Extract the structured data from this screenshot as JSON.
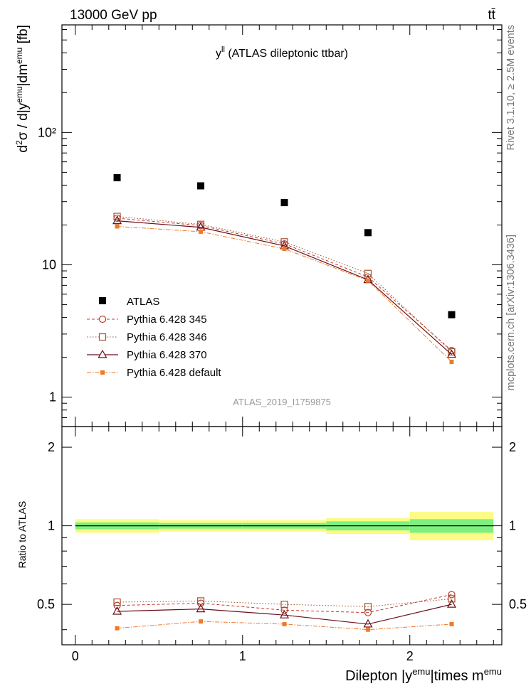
{
  "header": {
    "energy_label": "13000 GeV pp",
    "process_label": "tt̄"
  },
  "side_labels": {
    "rivet": "Rivet 3.1.10, ≥ 2.5M events",
    "mcplots": "mcplots.cern.ch [arXiv:1306.3436]"
  },
  "chart_data": [
    {
      "type": "scatter",
      "panel": "main",
      "title_base": "y",
      "title_sup": "ll",
      "title_rest": " (ATLAS dileptonic ttbar)",
      "ylabel": "d²σ / d|yᵉᵐᵘ|dmᵉᵐᵘ [fb]",
      "yscale": "log",
      "xlim": [
        -0.08,
        2.55
      ],
      "ylim": [
        0.6,
        650
      ],
      "yticks": [
        1,
        10,
        100
      ],
      "ytick_labels": [
        "1",
        "10",
        "10²"
      ],
      "analysis_id": "ATLAS_2019_I1759875",
      "legend_position": "left-middle",
      "x": [
        0.25,
        0.75,
        1.25,
        1.75,
        2.25
      ],
      "series": [
        {
          "name": "ATLAS",
          "marker": "filled-square",
          "color": "#000000",
          "values": [
            45.5,
            39.5,
            29.5,
            17.5,
            4.2
          ]
        },
        {
          "name": "Pythia 6.428 345",
          "marker": "open-circle",
          "line": "dashed",
          "color": "#c0392b",
          "values": [
            22.5,
            19.8,
            14.4,
            8.1,
            2.25
          ]
        },
        {
          "name": "Pythia 6.428 346",
          "marker": "open-square",
          "line": "dotted",
          "color": "#a0522d",
          "values": [
            23.2,
            20.2,
            14.9,
            8.6,
            2.2
          ]
        },
        {
          "name": "Pythia 6.428 370",
          "marker": "open-triangle",
          "line": "solid",
          "color": "#6b0f1a",
          "values": [
            21.5,
            19.2,
            13.9,
            7.7,
            2.1
          ]
        },
        {
          "name": "Pythia 6.428 default",
          "marker": "filled-square-small",
          "line": "dashdot",
          "color": "#f07a2a",
          "values": [
            19.5,
            17.8,
            13.2,
            7.6,
            1.85
          ]
        }
      ]
    },
    {
      "type": "scatter",
      "panel": "ratio",
      "ylabel": "Ratio to ATLAS",
      "xlabel_base": "Dilepton |y",
      "xlabel_sup1": "emu",
      "xlabel_mid": "|times m",
      "xlabel_sup2": "emu",
      "xlim": [
        -0.08,
        2.55
      ],
      "ylim": [
        0.35,
        2.4
      ],
      "yscale": "log",
      "yticks": [
        0.5,
        1,
        2
      ],
      "ytick_labels": [
        "0.5",
        "1",
        "2"
      ],
      "xticks": [
        0,
        1,
        2
      ],
      "xtick_labels": [
        "0",
        "1",
        "2"
      ],
      "bins": [
        [
          0,
          0.5
        ],
        [
          0.5,
          1.0
        ],
        [
          1.0,
          1.5
        ],
        [
          1.5,
          2.0
        ],
        [
          2.0,
          2.5
        ]
      ],
      "band_stat": [
        [
          0.97,
          1.03
        ],
        [
          0.975,
          1.025
        ],
        [
          0.975,
          1.025
        ],
        [
          0.96,
          1.04
        ],
        [
          0.94,
          1.06
        ]
      ],
      "band_total": [
        [
          0.94,
          1.06
        ],
        [
          0.95,
          1.05
        ],
        [
          0.95,
          1.05
        ],
        [
          0.93,
          1.07
        ],
        [
          0.88,
          1.13
        ]
      ],
      "x": [
        0.25,
        0.75,
        1.25,
        1.75,
        2.25
      ],
      "series": [
        {
          "name": "Pythia 6.428 345",
          "marker": "open-circle",
          "line": "dashed",
          "color": "#c0392b",
          "values": [
            0.495,
            0.505,
            0.475,
            0.465,
            0.545
          ]
        },
        {
          "name": "Pythia 6.428 346",
          "marker": "open-square",
          "line": "dotted",
          "color": "#a0522d",
          "values": [
            0.51,
            0.515,
            0.5,
            0.49,
            0.525
          ]
        },
        {
          "name": "Pythia 6.428 370",
          "marker": "open-triangle",
          "line": "solid",
          "color": "#6b0f1a",
          "values": [
            0.47,
            0.48,
            0.455,
            0.42,
            0.5
          ]
        },
        {
          "name": "Pythia 6.428 default",
          "marker": "filled-square-small",
          "line": "dashdot",
          "color": "#f07a2a",
          "values": [
            0.405,
            0.43,
            0.42,
            0.4,
            0.42
          ]
        }
      ]
    }
  ],
  "colors": {
    "band_stat": "#7ef07e",
    "band_total": "#fbfb86"
  }
}
